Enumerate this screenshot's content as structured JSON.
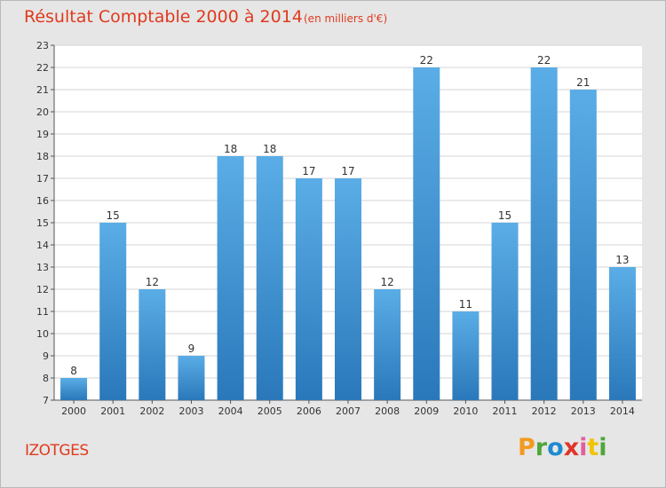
{
  "header": {
    "title": "Résultat Comptable 2000 à 2014",
    "subtitle": "(en milliers d'€)"
  },
  "footer": {
    "commune": "IZOTGES",
    "logo_letters": [
      "P",
      "r",
      "o",
      "x",
      "i",
      "t",
      "i"
    ]
  },
  "colors": {
    "bar_top": "#5aade6",
    "bar_bottom": "#2a78ba",
    "title": "#e03a1e"
  },
  "chart_data": {
    "type": "bar",
    "title": "Résultat Comptable 2000 à 2014",
    "subtitle": "(en milliers d'€)",
    "xlabel": "",
    "ylabel": "",
    "ylim": [
      7,
      23
    ],
    "yticks": [
      7,
      8,
      9,
      10,
      11,
      12,
      13,
      14,
      15,
      16,
      17,
      18,
      19,
      20,
      21,
      22,
      23
    ],
    "grid": true,
    "categories": [
      "2000",
      "2001",
      "2002",
      "2003",
      "2004",
      "2005",
      "2006",
      "2007",
      "2008",
      "2009",
      "2010",
      "2011",
      "2012",
      "2013",
      "2014"
    ],
    "values": [
      8,
      15,
      12,
      9,
      18,
      18,
      17,
      17,
      12,
      22,
      11,
      15,
      22,
      21,
      13
    ]
  }
}
